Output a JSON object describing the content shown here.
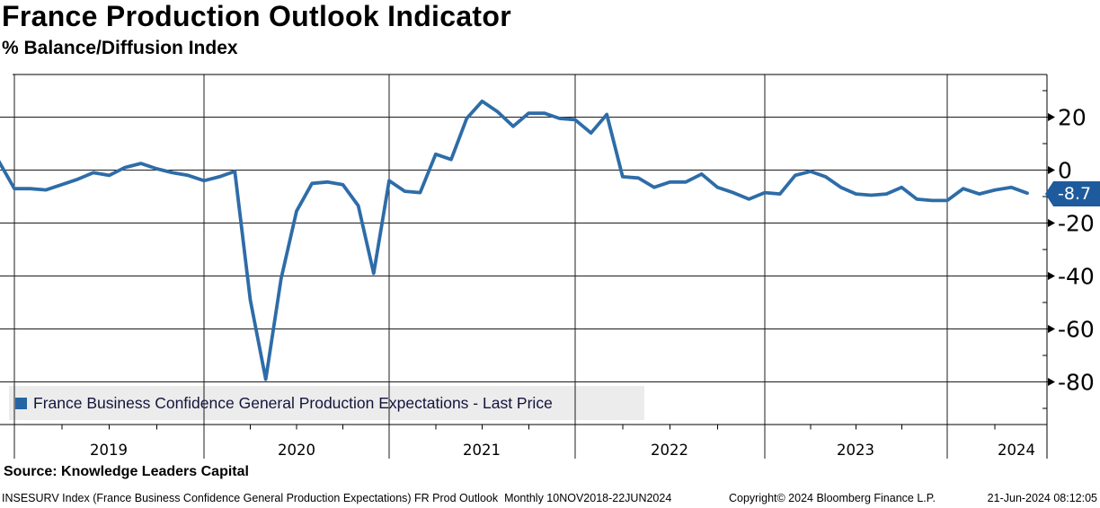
{
  "header": {
    "title": "France Production Outlook Indicator",
    "subtitle": "% Balance/Diffusion Index"
  },
  "legend": {
    "label": "France Business Confidence General Production Expectations - Last Price"
  },
  "footer": {
    "source": "Source: Knowledge Leaders Capital",
    "meta_left": "INSESURV Index (France Business Confidence General Production Expectations) FR Prod Outlook  Monthly 10NOV2018-22JUN2024",
    "meta_copyright": "Copyright© 2024 Bloomberg Finance L.P.",
    "meta_timestamp": "21-Jun-2024 08:12:05"
  },
  "colors": {
    "line": "#2e6ca8",
    "last_price_bg": "#1d5b9d",
    "legend_bg": "#ececec",
    "grid": "#1c1c1c"
  },
  "chart_data": {
    "type": "line",
    "title": "France Production Outlook Indicator",
    "ylabel": "% Balance/Diffusion Index",
    "xlabel": "",
    "grid": true,
    "legend_position": "bottom-left",
    "ylim": [
      -96,
      36
    ],
    "y_ticks_major": [
      20,
      0,
      -20,
      -40,
      -60,
      -80
    ],
    "y_ticks_minor": [
      30,
      10,
      -10,
      -30,
      -50,
      -70,
      -90
    ],
    "x_year_labels": [
      "2019",
      "2020",
      "2021",
      "2022",
      "2023",
      "2024"
    ],
    "last_price": -8.7,
    "last_price_label": "-8.7",
    "series": [
      {
        "name": "France Business Confidence General Production Expectations - Last Price",
        "color": "#2e6ca8",
        "months": [
          "2018-11",
          "2018-12",
          "2019-01",
          "2019-02",
          "2019-03",
          "2019-04",
          "2019-05",
          "2019-06",
          "2019-07",
          "2019-08",
          "2019-09",
          "2019-10",
          "2019-11",
          "2019-12",
          "2020-01",
          "2020-02",
          "2020-03",
          "2020-04",
          "2020-05",
          "2020-06",
          "2020-07",
          "2020-08",
          "2020-09",
          "2020-10",
          "2020-11",
          "2020-12",
          "2021-01",
          "2021-02",
          "2021-03",
          "2021-04",
          "2021-05",
          "2021-06",
          "2021-07",
          "2021-08",
          "2021-09",
          "2021-10",
          "2021-11",
          "2021-12",
          "2022-01",
          "2022-02",
          "2022-03",
          "2022-04",
          "2022-05",
          "2022-06",
          "2022-07",
          "2022-08",
          "2022-09",
          "2022-10",
          "2022-11",
          "2022-12",
          "2023-01",
          "2023-02",
          "2023-03",
          "2023-04",
          "2023-05",
          "2023-06",
          "2023-07",
          "2023-08",
          "2023-09",
          "2023-10",
          "2023-11",
          "2023-12",
          "2024-01",
          "2024-02",
          "2024-03",
          "2024-04",
          "2024-05",
          "2024-06"
        ],
        "values": [
          8,
          3.5,
          -7,
          -7,
          -7.5,
          -5.5,
          -3.5,
          -1,
          -2,
          1,
          2.5,
          0.5,
          -1,
          -2,
          -4,
          -2.5,
          -0.5,
          -49,
          -79,
          -41,
          -15.5,
          -5,
          -4.5,
          -5.5,
          -13.5,
          -39,
          -4,
          -8,
          -8.5,
          6,
          4,
          19.5,
          26,
          22,
          16.5,
          21.5,
          21.5,
          19.5,
          19,
          14,
          21,
          -2.5,
          -3,
          -6.5,
          -4.5,
          -4.5,
          -1.5,
          -6.5,
          -8.5,
          -11,
          -8.5,
          -9,
          -2,
          -0.5,
          -2.5,
          -6.5,
          -9,
          -9.5,
          -9,
          -6.5,
          -11,
          -11.5,
          -11.5,
          -7,
          -9,
          -7.5,
          -6.5,
          -8.7
        ]
      }
    ]
  }
}
